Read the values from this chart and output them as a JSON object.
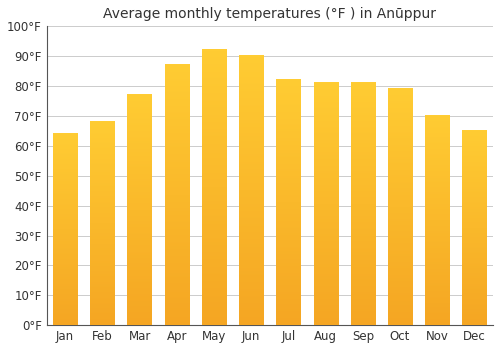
{
  "title": "Average monthly temperatures (°F ) in Anūppur",
  "months": [
    "Jan",
    "Feb",
    "Mar",
    "Apr",
    "May",
    "Jun",
    "Jul",
    "Aug",
    "Sep",
    "Oct",
    "Nov",
    "Dec"
  ],
  "values": [
    64,
    68,
    77,
    87,
    92,
    90,
    82,
    81,
    81,
    79,
    70,
    65
  ],
  "bar_color_top": "#FFCC33",
  "bar_color_bottom": "#F5A623",
  "ylim": [
    0,
    100
  ],
  "yticks": [
    0,
    10,
    20,
    30,
    40,
    50,
    60,
    70,
    80,
    90,
    100
  ],
  "ytick_labels": [
    "0°F",
    "10°F",
    "20°F",
    "30°F",
    "40°F",
    "50°F",
    "60°F",
    "70°F",
    "80°F",
    "90°F",
    "100°F"
  ],
  "background_color": "#ffffff",
  "grid_color": "#cccccc",
  "title_fontsize": 10,
  "tick_fontsize": 8.5
}
